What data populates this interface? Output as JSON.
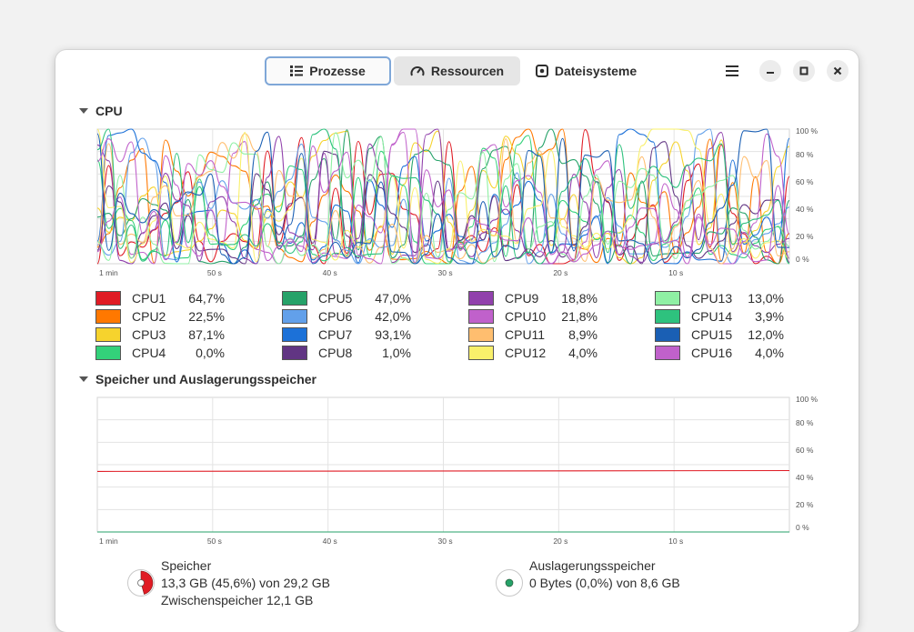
{
  "tabs": [
    {
      "label": "Prozesse",
      "icon": "list-icon",
      "state": "focused"
    },
    {
      "label": "Ressourcen",
      "icon": "gauge-icon",
      "state": "selected"
    },
    {
      "label": "Dateisysteme",
      "icon": "disk-icon",
      "state": "normal"
    }
  ],
  "cpu_section": {
    "title": "CPU"
  },
  "memory_section": {
    "title": "Speicher und Auslagerungsspeicher"
  },
  "chart_axes": {
    "y_ticks": [
      "100 %",
      "80 %",
      "60 %",
      "40 %",
      "20 %",
      "0 %"
    ],
    "x_ticks": [
      "1 min",
      "50 s",
      "40 s",
      "30 s",
      "20 s",
      "10 s"
    ]
  },
  "cpu_legend": [
    {
      "name": "CPU1",
      "value": "64,7%",
      "color": "#e01b24"
    },
    {
      "name": "CPU2",
      "value": "22,5%",
      "color": "#ff7800"
    },
    {
      "name": "CPU3",
      "value": "87,1%",
      "color": "#f6d32d"
    },
    {
      "name": "CPU4",
      "value": "0,0%",
      "color": "#33d17a"
    },
    {
      "name": "CPU5",
      "value": "47,0%",
      "color": "#26a269"
    },
    {
      "name": "CPU6",
      "value": "42,0%",
      "color": "#62a0ea"
    },
    {
      "name": "CPU7",
      "value": "93,1%",
      "color": "#1c71d8"
    },
    {
      "name": "CPU8",
      "value": "1,0%",
      "color": "#613583"
    },
    {
      "name": "CPU9",
      "value": "18,8%",
      "color": "#9141ac"
    },
    {
      "name": "CPU10",
      "value": "21,8%",
      "color": "#c061cb"
    },
    {
      "name": "CPU11",
      "value": "8,9%",
      "color": "#ffbe6f"
    },
    {
      "name": "CPU12",
      "value": "4,0%",
      "color": "#f9f06b"
    },
    {
      "name": "CPU13",
      "value": "13,0%",
      "color": "#8ff0a4"
    },
    {
      "name": "CPU14",
      "value": "3,9%",
      "color": "#2ec27e"
    },
    {
      "name": "CPU15",
      "value": "12,0%",
      "color": "#1a5fb4"
    },
    {
      "name": "CPU16",
      "value": "4,0%",
      "color": "#c061cb"
    }
  ],
  "memory": {
    "label": "Speicher",
    "usage": "13,3 GB (45,6%) von 29,2 GB",
    "cache": "Zwischenspeicher 12,1 GB",
    "percent": 45.6,
    "color": "#e01b24"
  },
  "swap": {
    "label": "Auslagerungsspeicher",
    "usage": "0 Bytes (0,0%) von 8,6 GB",
    "percent": 0.0,
    "color": "#26a269"
  },
  "chart_data": [
    {
      "type": "line",
      "y_unit": "%",
      "ylim": [
        0,
        100
      ],
      "xlim_seconds_ago": [
        60,
        0
      ],
      "grid": true,
      "legend": "below",
      "series_names": [
        "CPU1",
        "CPU2",
        "CPU3",
        "CPU4",
        "CPU5",
        "CPU6",
        "CPU7",
        "CPU8",
        "CPU9",
        "CPU10",
        "CPU11",
        "CPU12",
        "CPU13",
        "CPU14",
        "CPU15",
        "CPU16"
      ],
      "series_current_values": [
        64.7,
        22.5,
        87.1,
        0.0,
        47.0,
        42.0,
        93.1,
        1.0,
        18.8,
        21.8,
        8.9,
        4.0,
        13.0,
        3.9,
        12.0,
        4.0
      ]
    },
    {
      "type": "line",
      "y_unit": "%",
      "ylim": [
        0,
        100
      ],
      "xlim_seconds_ago": [
        60,
        0
      ],
      "grid": true,
      "series": [
        {
          "name": "Speicher",
          "values": [
            45.0,
            45.6
          ],
          "color": "#e01b24"
        },
        {
          "name": "Auslagerungsspeicher",
          "values": [
            0.0,
            0.0
          ],
          "color": "#26a269"
        }
      ]
    }
  ]
}
